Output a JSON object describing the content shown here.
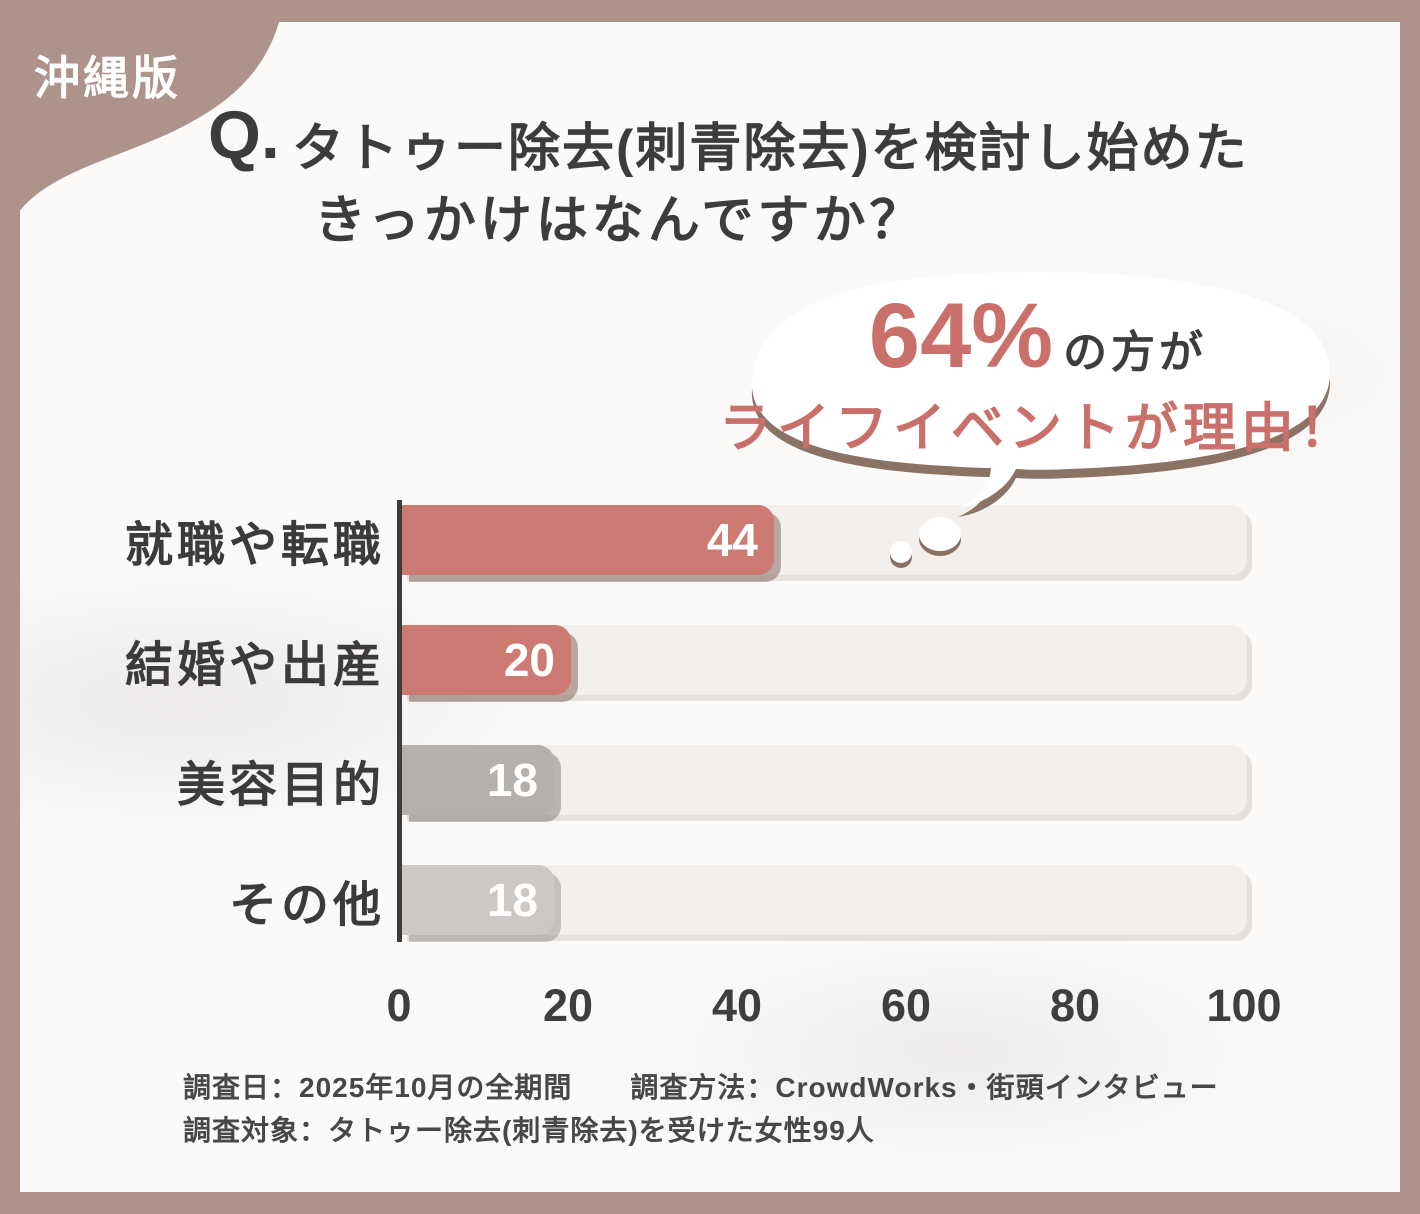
{
  "badge": {
    "label": "沖縄版"
  },
  "title": {
    "prefix": "Q.",
    "line1": "タトゥー除去(刺青除去)を検討し始めた",
    "line2": "きっかけはなんですか？"
  },
  "callout": {
    "percent": "64%",
    "suffix": "の方が",
    "line2": "ライフイベントが理由！"
  },
  "chart_data": {
    "type": "bar",
    "orientation": "horizontal",
    "title": "Q. タトゥー除去(刺青除去)を検討し始めたきっかけはなんですか？",
    "categories": [
      "就職や転職",
      "結婚や出産",
      "美容目的",
      "その他"
    ],
    "values": [
      44,
      20,
      18,
      18
    ],
    "value_labels": [
      "44",
      "20",
      "18",
      "18"
    ],
    "xlim": [
      0,
      100
    ],
    "x_ticks": [
      "0",
      "20",
      "40",
      "60",
      "80",
      "100"
    ],
    "bar_colors": [
      "#cd7a73",
      "#cd7a73",
      "#b4b0ad",
      "#cbc8c6"
    ],
    "bar_shadow_colors": [
      "rgba(125,95,85,0.50)",
      "rgba(125,95,85,0.50)",
      "rgba(118,108,102,0.45)",
      "rgba(130,122,117,0.40)"
    ],
    "track_color": "#f2efec",
    "grid": false,
    "annotation": "64%の方がライフイベントが理由！"
  },
  "footer": {
    "line1": "調査日：2025年10月の全期間　　調査方法：CrowdWorks・街頭インタビュー",
    "line2": "調査対象：タトゥー除去(刺青除去)を受けた女性99人"
  },
  "colors": {
    "frame": "#ad938a",
    "card": "#fbfaf9",
    "accent_coral": "#c9706a",
    "bar_coral": "#cd7a73",
    "bar_gray": "#b4b0ad",
    "bar_gray_light": "#cbc8c6",
    "text_dark": "#3d3b3b",
    "bubble_shadow": "#8a7265"
  }
}
